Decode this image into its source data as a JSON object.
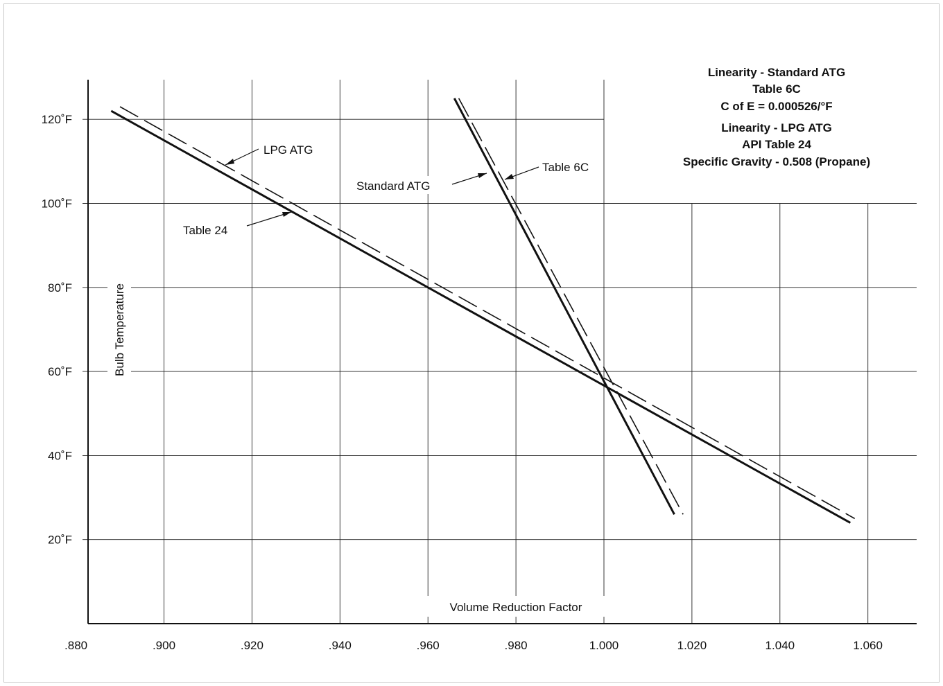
{
  "chart_data": {
    "type": "line",
    "title_lines": [
      "Linearity - Standard ATG",
      "Table 6C",
      "C of E = 0.000526/°F",
      "Linearity - LPG ATG",
      "API Table 24",
      "Specific Gravity - 0.508 (Propane)"
    ],
    "xlabel": "Volume Reduction Factor",
    "ylabel": "Bulb Temperature",
    "xlim": [
      0.88,
      1.07
    ],
    "ylim": [
      0,
      130
    ],
    "x_ticks": [
      ".880",
      ".900",
      ".920",
      ".940",
      ".960",
      ".980",
      "1.000",
      "1.020",
      "1.040",
      "1.060"
    ],
    "y_ticks": [
      "20˚F",
      "40˚F",
      "60˚F",
      "80˚F",
      "100˚F",
      "120˚F"
    ],
    "grid": true,
    "series": [
      {
        "name": "LPG ATG",
        "style": "solid",
        "x": [
          0.888,
          1.056
        ],
        "y": [
          122,
          24
        ]
      },
      {
        "name": "Table 24",
        "style": "dashed",
        "x": [
          0.89,
          1.057
        ],
        "y": [
          123,
          25
        ]
      },
      {
        "name": "Standard ATG",
        "style": "solid",
        "x": [
          0.966,
          1.016
        ],
        "y": [
          125,
          26
        ]
      },
      {
        "name": "Table 6C",
        "style": "dashed",
        "x": [
          0.967,
          1.018
        ],
        "y": [
          125,
          26
        ]
      }
    ],
    "annotations": [
      "LPG ATG",
      "Table 24",
      "Standard ATG",
      "Table 6C"
    ]
  }
}
